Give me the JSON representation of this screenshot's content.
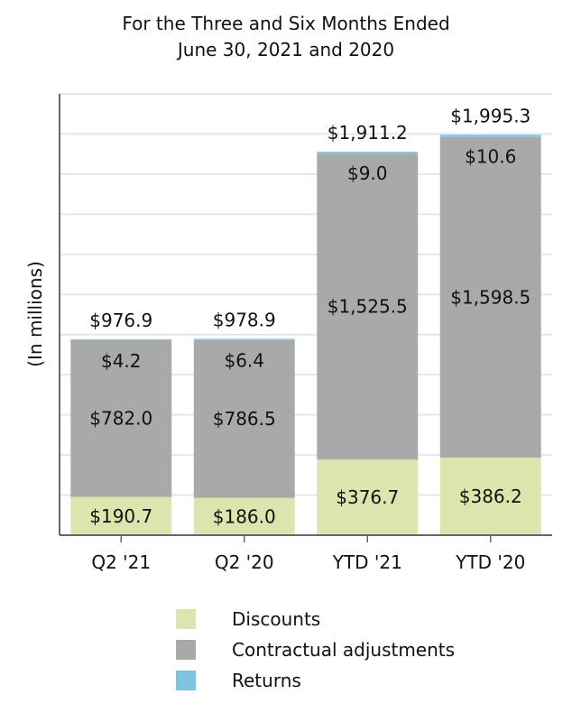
{
  "chart_data": {
    "type": "bar",
    "stacked": true,
    "title_lines": [
      "For the Three and Six Months Ended",
      "June 30, 2021 and 2020"
    ],
    "ylabel": "(In millions)",
    "xlabel": "",
    "categories": [
      "Q2 '21",
      "Q2 '20",
      "YTD '21",
      "YTD '20"
    ],
    "totals": [
      "$976.9",
      "$978.9",
      "$1,911.2",
      "$1,995.3"
    ],
    "ylim": [
      0,
      2200
    ],
    "grid": true,
    "legend_position": "bottom",
    "series": [
      {
        "name": "Discounts",
        "color": "#dbe5ad",
        "values": [
          190.7,
          186.0,
          376.7,
          386.2
        ],
        "labels": [
          "$190.7",
          "$186.0",
          "$376.7",
          "$386.2"
        ]
      },
      {
        "name": "Contractual adjustments",
        "color": "#a9a9a9",
        "values": [
          782.0,
          786.5,
          1525.5,
          1598.5
        ],
        "labels": [
          "$782.0",
          "$786.5",
          "$1,525.5",
          "$1,598.5"
        ]
      },
      {
        "name": "Returns",
        "color": "#7ec3df",
        "values": [
          4.2,
          6.4,
          9.0,
          10.6
        ],
        "labels": [
          "$4.2",
          "$6.4",
          "$9.0",
          "$10.6"
        ]
      }
    ]
  }
}
